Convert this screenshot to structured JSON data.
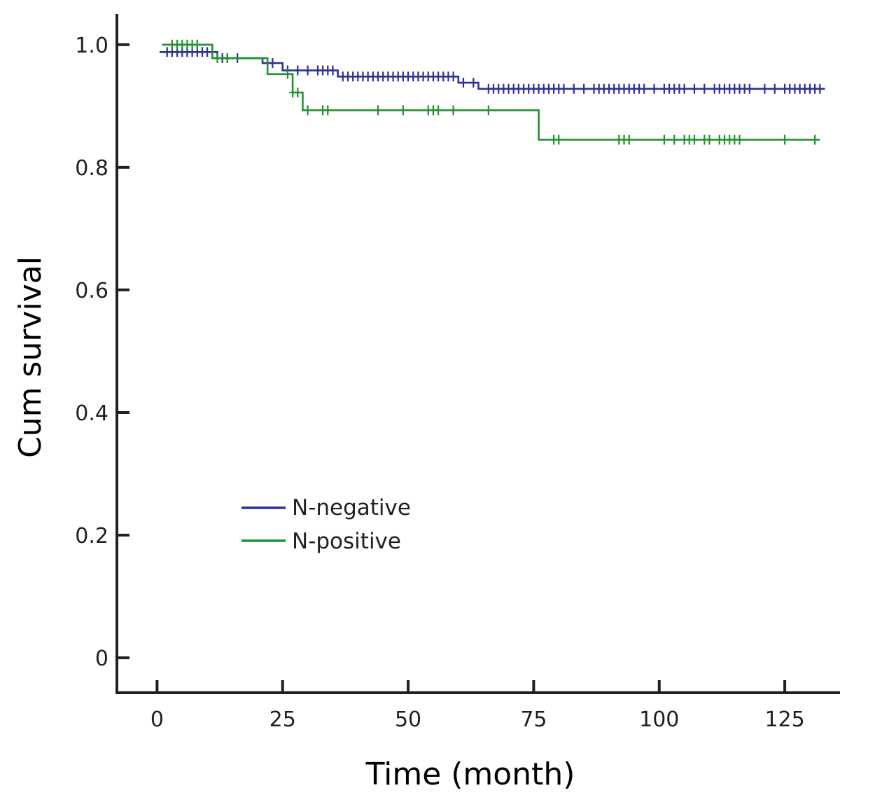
{
  "chart_data": {
    "type": "line",
    "subtype": "kaplan-meier",
    "xlabel": "Time (month)",
    "ylabel": "Cum survival",
    "xlim": [
      -8,
      136
    ],
    "ylim": [
      -0.057,
      1.05
    ],
    "x_ticks": [
      0,
      25,
      50,
      75,
      100,
      125
    ],
    "x_tick_labels": [
      "0",
      "25",
      "50",
      "75",
      "100",
      "125"
    ],
    "y_ticks": [
      0,
      0.2,
      0.4,
      0.6,
      0.8,
      1.0
    ],
    "y_tick_labels": [
      "0",
      "0.2",
      "0.4",
      "0.6",
      "0.8",
      "1.0"
    ],
    "grid": false,
    "legend_position": "lower-left",
    "series": [
      {
        "name": "N-negative",
        "color": "#2e3192",
        "steps": [
          [
            0.5,
            0.988
          ],
          [
            12,
            0.978
          ],
          [
            21,
            0.97
          ],
          [
            25,
            0.958
          ],
          [
            36,
            0.948
          ],
          [
            60,
            0.938
          ],
          [
            64,
            0.928
          ],
          [
            133,
            0.928
          ]
        ],
        "censored": [
          2,
          3,
          4,
          5,
          6,
          7,
          8,
          9,
          10,
          11,
          13,
          14,
          16,
          22,
          23,
          26,
          28,
          30,
          32,
          33,
          34,
          35,
          37,
          38,
          39,
          40,
          41,
          42,
          43,
          44,
          45,
          46,
          47,
          48,
          49,
          50,
          51,
          52,
          53,
          54,
          55,
          56,
          57,
          58,
          59,
          61,
          63,
          66,
          67,
          68,
          69,
          70,
          71,
          72,
          73,
          74,
          75,
          76,
          77,
          78,
          79,
          80,
          81,
          83,
          85,
          87,
          88,
          89,
          90,
          91,
          92,
          93,
          94,
          95,
          96,
          97,
          99,
          101,
          102,
          103,
          104,
          105,
          107,
          109,
          111,
          112,
          113,
          114,
          115,
          116,
          117,
          118,
          121,
          123,
          125,
          126,
          127,
          128,
          129,
          130,
          131,
          132
        ]
      },
      {
        "name": "N-positive",
        "color": "#21922d",
        "steps": [
          [
            1,
            1.0
          ],
          [
            11,
            0.978
          ],
          [
            22,
            0.952
          ],
          [
            27,
            0.922
          ],
          [
            29,
            0.893
          ],
          [
            76,
            0.845
          ],
          [
            132,
            0.845
          ]
        ],
        "censored": [
          3,
          4,
          5,
          6,
          7,
          8,
          12,
          14,
          26,
          27,
          28,
          30,
          33,
          34,
          44,
          49,
          54,
          55,
          56,
          59,
          66,
          79,
          80,
          92,
          93,
          94,
          101,
          103,
          105,
          106,
          107,
          109,
          110,
          112,
          113,
          114,
          115,
          116,
          125,
          131
        ]
      }
    ]
  }
}
